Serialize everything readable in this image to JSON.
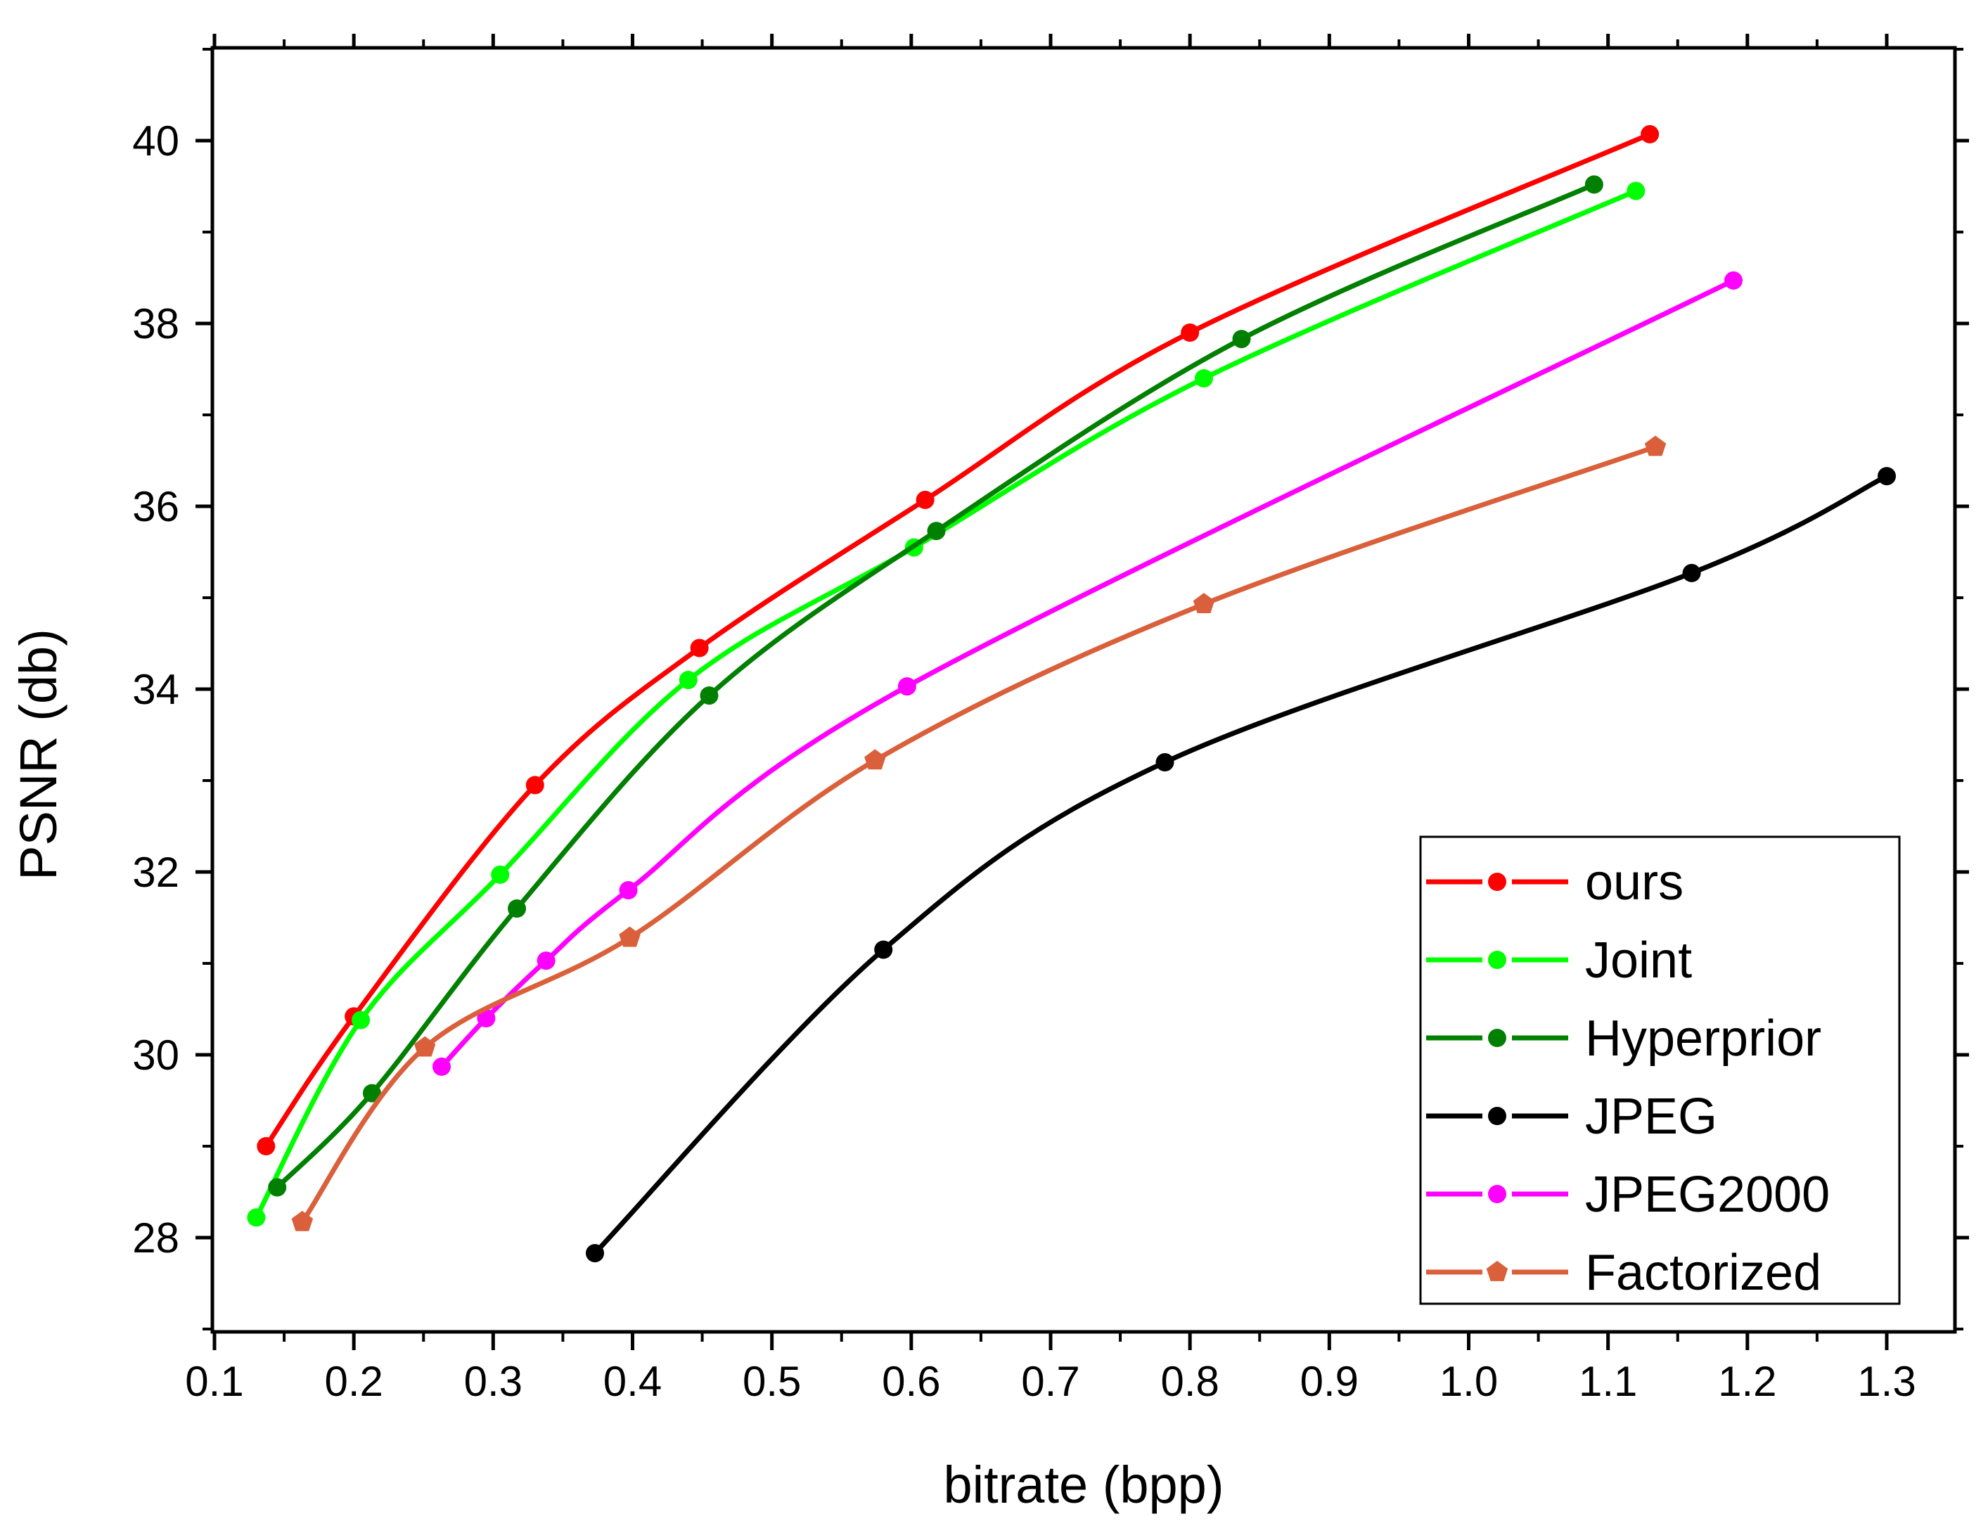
{
  "chart_data": {
    "type": "line",
    "title": "",
    "xlabel": "bitrate (bpp)",
    "ylabel": "PSNR (db)",
    "xlim": [
      0.1,
      1.35
    ],
    "ylim": [
      27,
      41
    ],
    "x_ticks": [
      0.1,
      0.2,
      0.3,
      0.4,
      0.5,
      0.6,
      0.7,
      0.8,
      0.9,
      1.0,
      1.1,
      1.2,
      1.3
    ],
    "x_tick_labels": [
      "0.1",
      "0.2",
      "0.3",
      "0.4",
      "0.5",
      "0.6",
      "0.7",
      "0.8",
      "0.9",
      "1.0",
      "1.1",
      "1.2",
      "1.3"
    ],
    "y_ticks": [
      28,
      30,
      32,
      34,
      36,
      38,
      40
    ],
    "y_tick_labels": [
      "28",
      "30",
      "32",
      "34",
      "36",
      "38",
      "40"
    ],
    "grid": false,
    "legend_position": "bottom-right",
    "series": [
      {
        "name": "ours",
        "color": "#ff0000",
        "marker": "circle",
        "x": [
          0.137,
          0.2,
          0.33,
          0.448,
          0.61,
          0.8,
          1.13
        ],
        "y": [
          29.0,
          30.42,
          32.95,
          34.45,
          36.07,
          37.9,
          40.07
        ]
      },
      {
        "name": "Joint",
        "color": "#00ff00",
        "marker": "circle",
        "x": [
          0.13,
          0.205,
          0.305,
          0.44,
          0.602,
          0.81,
          1.12
        ],
        "y": [
          28.22,
          30.38,
          31.97,
          34.1,
          35.55,
          37.4,
          39.45
        ]
      },
      {
        "name": "Hyperprior",
        "color": "#008000",
        "marker": "circle",
        "x": [
          0.145,
          0.213,
          0.317,
          0.455,
          0.618,
          0.837,
          1.09
        ],
        "y": [
          28.55,
          29.58,
          31.6,
          33.93,
          35.73,
          37.83,
          39.52
        ]
      },
      {
        "name": "JPEG",
        "color": "#000000",
        "marker": "circle",
        "x": [
          0.373,
          0.58,
          0.782,
          1.16,
          1.3
        ],
        "y": [
          27.83,
          31.15,
          33.2,
          35.27,
          36.33
        ]
      },
      {
        "name": "JPEG2000",
        "color": "#ff00ff",
        "marker": "circle",
        "x": [
          0.263,
          0.295,
          0.338,
          0.397,
          0.597,
          1.19
        ],
        "y": [
          29.87,
          30.4,
          31.03,
          31.8,
          34.03,
          38.47
        ]
      },
      {
        "name": "Factorized",
        "color": "#d9603b",
        "marker": "pentagon",
        "x": [
          0.163,
          0.251,
          0.398,
          0.574,
          0.81,
          1.134
        ],
        "y": [
          28.17,
          30.08,
          31.28,
          33.22,
          34.93,
          36.65
        ]
      }
    ]
  }
}
